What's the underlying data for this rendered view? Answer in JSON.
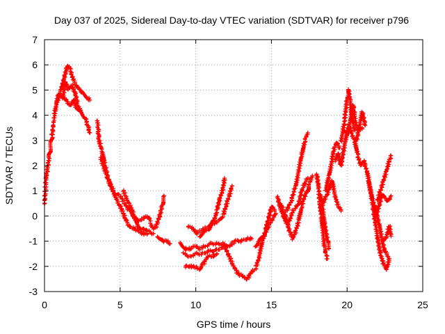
{
  "chart_data": {
    "type": "scatter",
    "title": "Day 037 of 2025, Sidereal Day-to-day VTEC variation (SDTVAR) for receiver p796",
    "xlabel": "GPS time / hours",
    "ylabel": "SDTVAR / TECUs",
    "xlim": [
      0,
      25
    ],
    "ylim": [
      -3,
      7
    ],
    "xticks": [
      0,
      5,
      10,
      15,
      20,
      25
    ],
    "yticks": [
      -3,
      -2,
      -1,
      0,
      1,
      2,
      3,
      4,
      5,
      6,
      7
    ],
    "grid": true,
    "marker": "+",
    "series": [
      {
        "name": "SDTVAR",
        "color": "#ff0000",
        "tracks": [
          [
            [
              0.0,
              0.5
            ],
            [
              0.1,
              1.5
            ],
            [
              0.3,
              2.3
            ],
            [
              0.5,
              3.2
            ],
            [
              0.7,
              4.2
            ],
            [
              0.9,
              4.8
            ],
            [
              1.1,
              5.0
            ],
            [
              1.3,
              5.5
            ],
            [
              1.5,
              6.0
            ],
            [
              1.7,
              5.8
            ],
            [
              1.9,
              5.4
            ],
            [
              2.1,
              5.2
            ],
            [
              2.3,
              5.0
            ],
            [
              2.5,
              4.9
            ],
            [
              2.8,
              4.7
            ],
            [
              3.0,
              4.6
            ]
          ],
          [
            [
              0.8,
              4.5
            ],
            [
              1.0,
              4.8
            ],
            [
              1.3,
              4.7
            ],
            [
              1.5,
              4.5
            ],
            [
              1.7,
              4.4
            ],
            [
              1.9,
              4.6
            ],
            [
              2.1,
              4.3
            ],
            [
              2.4,
              4.1
            ],
            [
              2.7,
              3.9
            ],
            [
              3.0,
              3.3
            ]
          ],
          [
            [
              1.2,
              4.7
            ],
            [
              1.4,
              5.3
            ],
            [
              1.6,
              5.0
            ],
            [
              1.8,
              5.2
            ],
            [
              2.0,
              4.9
            ],
            [
              2.2,
              4.4
            ],
            [
              2.4,
              4.2
            ]
          ],
          [
            [
              3.5,
              3.8
            ],
            [
              3.6,
              3.0
            ],
            [
              3.8,
              2.6
            ],
            [
              4.0,
              2.0
            ],
            [
              4.2,
              1.5
            ],
            [
              4.4,
              1.2
            ],
            [
              4.6,
              0.9
            ],
            [
              4.8,
              0.6
            ],
            [
              5.0,
              0.4
            ],
            [
              5.2,
              0.1
            ],
            [
              5.4,
              -0.2
            ],
            [
              5.6,
              -0.4
            ],
            [
              5.9,
              -0.5
            ],
            [
              6.2,
              -0.6
            ],
            [
              6.5,
              -0.7
            ],
            [
              6.8,
              -0.7
            ]
          ],
          [
            [
              3.7,
              2.3
            ],
            [
              4.0,
              1.8
            ],
            [
              4.3,
              1.3
            ],
            [
              4.6,
              0.9
            ],
            [
              5.0,
              0.8
            ],
            [
              5.3,
              0.5
            ],
            [
              5.6,
              0.2
            ],
            [
              5.9,
              0.0
            ],
            [
              6.2,
              -0.2
            ],
            [
              6.5,
              -0.1
            ],
            [
              6.8,
              0.0
            ],
            [
              7.0,
              -0.2
            ]
          ],
          [
            [
              5.2,
              1.0
            ],
            [
              5.5,
              0.6
            ],
            [
              5.8,
              0.2
            ],
            [
              6.1,
              -0.3
            ],
            [
              6.4,
              -0.5
            ],
            [
              6.8,
              -0.6
            ],
            [
              7.2,
              -0.7
            ]
          ],
          [
            [
              7.0,
              -0.3
            ],
            [
              7.2,
              -0.5
            ],
            [
              7.4,
              -0.4
            ],
            [
              7.6,
              0.0
            ],
            [
              7.8,
              0.5
            ],
            [
              7.9,
              0.8
            ]
          ],
          [
            [
              7.5,
              -0.8
            ],
            [
              7.8,
              -1.0
            ],
            [
              8.1,
              -1.0
            ],
            [
              8.3,
              -1.1
            ]
          ],
          [
            [
              9.0,
              -1.1
            ],
            [
              9.3,
              -1.3
            ],
            [
              9.6,
              -1.3
            ],
            [
              10.0,
              -1.2
            ],
            [
              10.3,
              -1.3
            ],
            [
              10.6,
              -1.2
            ],
            [
              11.0,
              -1.1
            ],
            [
              11.4,
              -1.1
            ],
            [
              11.8,
              -1.1
            ],
            [
              12.2,
              -1.2
            ],
            [
              12.6,
              -1.0
            ],
            [
              13.0,
              -1.0
            ],
            [
              13.4,
              -0.9
            ],
            [
              13.7,
              -0.9
            ]
          ],
          [
            [
              9.2,
              -1.5
            ],
            [
              9.6,
              -1.6
            ],
            [
              10.0,
              -1.5
            ],
            [
              10.4,
              -1.5
            ],
            [
              10.8,
              -1.4
            ],
            [
              11.2,
              -1.4
            ],
            [
              11.6,
              -1.3
            ],
            [
              11.9,
              -1.2
            ]
          ],
          [
            [
              9.3,
              -2.0
            ],
            [
              9.6,
              -2.0
            ],
            [
              9.9,
              -2.0
            ],
            [
              10.2,
              -2.1
            ],
            [
              10.5,
              -1.9
            ],
            [
              10.8,
              -1.6
            ],
            [
              11.1,
              -1.6
            ],
            [
              11.4,
              -1.5
            ]
          ],
          [
            [
              9.5,
              -0.4
            ],
            [
              9.8,
              -0.5
            ],
            [
              10.0,
              -0.7
            ],
            [
              10.3,
              -0.6
            ],
            [
              10.6,
              -0.5
            ],
            [
              10.9,
              -0.4
            ],
            [
              11.2,
              -0.2
            ],
            [
              11.4,
              0.2
            ],
            [
              11.6,
              0.7
            ],
            [
              11.8,
              1.1
            ],
            [
              11.9,
              1.5
            ]
          ],
          [
            [
              10.3,
              -0.8
            ],
            [
              10.6,
              -0.6
            ],
            [
              10.9,
              -0.5
            ],
            [
              11.2,
              -0.3
            ],
            [
              11.5,
              -0.2
            ],
            [
              11.8,
              0.0
            ],
            [
              12.0,
              0.4
            ],
            [
              12.2,
              0.8
            ],
            [
              12.4,
              1.2
            ]
          ],
          [
            [
              11.9,
              -1.2
            ],
            [
              12.2,
              -1.6
            ],
            [
              12.5,
              -2.0
            ],
            [
              12.8,
              -2.3
            ],
            [
              13.1,
              -2.4
            ],
            [
              13.4,
              -2.5
            ],
            [
              13.7,
              -2.2
            ],
            [
              14.0,
              -2.1
            ]
          ],
          [
            [
              14.0,
              -2.0
            ],
            [
              14.2,
              -1.6
            ],
            [
              14.4,
              -1.0
            ],
            [
              14.6,
              -0.6
            ],
            [
              14.8,
              -0.1
            ],
            [
              15.0,
              0.4
            ],
            [
              15.2,
              0.2
            ]
          ],
          [
            [
              13.9,
              -1.2
            ],
            [
              14.2,
              -1.0
            ],
            [
              14.5,
              -0.8
            ],
            [
              14.8,
              -0.4
            ],
            [
              15.1,
              -0.1
            ],
            [
              15.3,
              0.1
            ]
          ],
          [
            [
              15.4,
              0.8
            ],
            [
              15.6,
              0.3
            ],
            [
              15.8,
              0.0
            ],
            [
              16.0,
              -0.3
            ],
            [
              16.2,
              -0.2
            ],
            [
              16.4,
              0.2
            ],
            [
              16.6,
              0.3
            ],
            [
              16.8,
              0.5
            ],
            [
              17.0,
              1.0
            ],
            [
              17.2,
              1.3
            ],
            [
              17.4,
              1.5
            ]
          ],
          [
            [
              15.6,
              0.5
            ],
            [
              15.8,
              0.2
            ],
            [
              16.0,
              -0.1
            ],
            [
              16.2,
              -0.6
            ],
            [
              16.4,
              -0.9
            ],
            [
              16.6,
              -0.6
            ],
            [
              16.8,
              -0.2
            ],
            [
              17.0,
              0.4
            ],
            [
              17.2,
              0.8
            ],
            [
              17.4,
              1.0
            ]
          ],
          [
            [
              16.0,
              0.2
            ],
            [
              16.3,
              0.6
            ],
            [
              16.6,
              1.2
            ],
            [
              16.8,
              1.8
            ],
            [
              17.0,
              2.4
            ],
            [
              17.2,
              3.0
            ],
            [
              17.4,
              3.3
            ]
          ],
          [
            [
              17.2,
              0.8
            ],
            [
              17.4,
              1.0
            ],
            [
              17.5,
              1.3
            ],
            [
              17.7,
              1.6
            ]
          ],
          [
            [
              18.0,
              1.7
            ],
            [
              18.1,
              1.2
            ],
            [
              18.2,
              0.5
            ],
            [
              18.3,
              0.0
            ],
            [
              18.4,
              -0.6
            ],
            [
              18.5,
              -1.2
            ],
            [
              18.6,
              -1.5
            ],
            [
              18.7,
              -1.7
            ]
          ],
          [
            [
              18.2,
              0.9
            ],
            [
              18.4,
              0.3
            ],
            [
              18.5,
              -0.3
            ],
            [
              18.7,
              -1.0
            ],
            [
              18.8,
              -1.3
            ]
          ],
          [
            [
              18.6,
              1.0
            ],
            [
              18.8,
              1.6
            ],
            [
              19.0,
              2.2
            ],
            [
              19.1,
              2.6
            ],
            [
              19.3,
              2.9
            ],
            [
              19.5,
              2.7
            ]
          ],
          [
            [
              18.4,
              0.5
            ],
            [
              18.7,
              0.9
            ],
            [
              19.0,
              1.4
            ],
            [
              19.2,
              0.8
            ],
            [
              19.4,
              0.4
            ],
            [
              19.6,
              0.2
            ]
          ],
          [
            [
              19.2,
              2.2
            ],
            [
              19.4,
              2.5
            ],
            [
              19.6,
              2.0
            ],
            [
              19.8,
              2.7
            ],
            [
              20.0,
              3.3
            ],
            [
              20.2,
              3.8
            ],
            [
              20.4,
              4.4
            ],
            [
              20.6,
              3.6
            ],
            [
              20.8,
              3.4
            ],
            [
              21.0,
              3.5
            ]
          ],
          [
            [
              19.6,
              3.0
            ],
            [
              19.8,
              3.6
            ],
            [
              20.0,
              4.7
            ],
            [
              20.1,
              5.0
            ],
            [
              20.2,
              4.6
            ],
            [
              20.3,
              4.0
            ],
            [
              20.5,
              3.4
            ]
          ],
          [
            [
              19.8,
              3.4
            ],
            [
              20.0,
              3.2
            ],
            [
              20.2,
              3.5
            ],
            [
              20.4,
              3.1
            ],
            [
              20.6,
              3.0
            ],
            [
              20.8,
              3.5
            ],
            [
              21.0,
              4.1
            ],
            [
              21.2,
              3.6
            ]
          ],
          [
            [
              20.5,
              3.0
            ],
            [
              20.7,
              2.4
            ],
            [
              20.9,
              2.0
            ],
            [
              21.1,
              2.2
            ],
            [
              21.3,
              1.8
            ],
            [
              21.5,
              1.2
            ],
            [
              21.7,
              0.6
            ],
            [
              21.9,
              0.2
            ],
            [
              22.1,
              -0.3
            ],
            [
              22.3,
              -0.9
            ],
            [
              22.5,
              -1.4
            ],
            [
              22.7,
              -1.6
            ]
          ],
          [
            [
              21.4,
              1.4
            ],
            [
              21.6,
              0.8
            ],
            [
              21.8,
              0.0
            ],
            [
              22.0,
              -0.8
            ],
            [
              22.2,
              -1.5
            ],
            [
              22.4,
              -1.9
            ],
            [
              22.6,
              -2.1
            ],
            [
              22.8,
              -1.7
            ]
          ],
          [
            [
              22.0,
              0.6
            ],
            [
              22.2,
              1.0
            ],
            [
              22.4,
              1.4
            ],
            [
              22.6,
              1.8
            ],
            [
              22.8,
              2.2
            ],
            [
              22.9,
              2.4
            ]
          ],
          [
            [
              21.9,
              0.0
            ],
            [
              22.1,
              0.4
            ],
            [
              22.3,
              0.9
            ],
            [
              22.5,
              0.7
            ],
            [
              22.7,
              0.6
            ],
            [
              22.9,
              0.8
            ]
          ],
          [
            [
              22.4,
              -1.0
            ],
            [
              22.6,
              -0.8
            ],
            [
              22.8,
              -0.4
            ],
            [
              22.9,
              -0.8
            ]
          ]
        ]
      }
    ]
  }
}
